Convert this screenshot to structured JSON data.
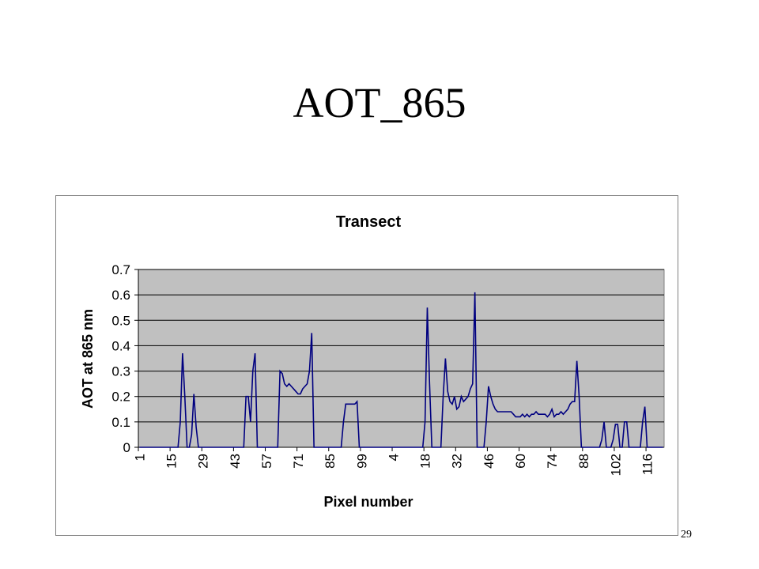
{
  "slide": {
    "title": "AOT_865",
    "page_number": "29"
  },
  "chart_data": {
    "type": "line",
    "title": "Transect",
    "x_label": "Pixel number",
    "y_label": "AOT at 865 nm",
    "ylim": [
      0,
      0.7
    ],
    "yticks": [
      0,
      0.1,
      0.2,
      0.3,
      0.4,
      0.5,
      0.6,
      0.7
    ],
    "grid": true,
    "categories": [
      1,
      null,
      null,
      null,
      null,
      null,
      null,
      null,
      null,
      null,
      null,
      null,
      null,
      null,
      15,
      null,
      null,
      null,
      null,
      null,
      null,
      null,
      null,
      null,
      null,
      null,
      null,
      null,
      29,
      null,
      null,
      null,
      null,
      null,
      null,
      null,
      null,
      null,
      null,
      null,
      null,
      null,
      43,
      null,
      null,
      null,
      null,
      null,
      null,
      null,
      null,
      null,
      null,
      null,
      null,
      null,
      57,
      null,
      null,
      null,
      null,
      null,
      null,
      null,
      null,
      null,
      null,
      null,
      null,
      null,
      71,
      null,
      null,
      null,
      null,
      null,
      null,
      null,
      null,
      null,
      null,
      null,
      null,
      null,
      85,
      null,
      null,
      null,
      null,
      null,
      null,
      null,
      null,
      null,
      null,
      null,
      null,
      null,
      99,
      null,
      null,
      null,
      null,
      null,
      null,
      null,
      null,
      null,
      null,
      null,
      null,
      null,
      4,
      null,
      null,
      null,
      null,
      null,
      null,
      null,
      null,
      null,
      null,
      null,
      null,
      null,
      18,
      null,
      null,
      null,
      null,
      null,
      null,
      null,
      null,
      null,
      null,
      null,
      null,
      null,
      32,
      null,
      null,
      null,
      null,
      null,
      null,
      null,
      null,
      null,
      null,
      null,
      null,
      null,
      46,
      null,
      null,
      null,
      null,
      null,
      null,
      null,
      null,
      null,
      null,
      null,
      null,
      null,
      60,
      null,
      null,
      null,
      null,
      null,
      null,
      null,
      null,
      null,
      null,
      null,
      null,
      null,
      74,
      null,
      null,
      null,
      null,
      null,
      null,
      null,
      null,
      null,
      null,
      null,
      null,
      null,
      88,
      null,
      null,
      null,
      null,
      null,
      null,
      null,
      null,
      null,
      null,
      null,
      null,
      null,
      102,
      null,
      null,
      null,
      null,
      null,
      null,
      null,
      null,
      null,
      null,
      null,
      null,
      null,
      116,
      null,
      null,
      null,
      null,
      null,
      null,
      null
    ],
    "series": [
      {
        "color": "#000080",
        "values": [
          0,
          0,
          0,
          0,
          0,
          0,
          0,
          0,
          0,
          0,
          0,
          0,
          0,
          0,
          0,
          0,
          0,
          0,
          0.1,
          0.37,
          0.2,
          0,
          0,
          0.05,
          0.21,
          0.08,
          0,
          0,
          0,
          0,
          0,
          0,
          0,
          0,
          0,
          0,
          0,
          0,
          0,
          0,
          0,
          0,
          0,
          0,
          0,
          0,
          0,
          0.2,
          0.2,
          0.1,
          0.3,
          0.37,
          0,
          0,
          0,
          0,
          0,
          0,
          0,
          0,
          0,
          0,
          0.3,
          0.29,
          0.25,
          0.24,
          0.25,
          0.24,
          0.23,
          0.22,
          0.21,
          0.21,
          0.23,
          0.24,
          0.25,
          0.3,
          0.45,
          0,
          0,
          0,
          0,
          0,
          0,
          0,
          0,
          0,
          0,
          0,
          0,
          0,
          0.1,
          0.17,
          0.17,
          0.17,
          0.17,
          0.17,
          0.18,
          0,
          0,
          0,
          0,
          0,
          0,
          0,
          0,
          0,
          0,
          0,
          0,
          0,
          0,
          0,
          0,
          0,
          0,
          0,
          0,
          0,
          0,
          0,
          0,
          0,
          0,
          0,
          0,
          0,
          0.1,
          0.55,
          0.25,
          0,
          0,
          0,
          0,
          0,
          0.2,
          0.35,
          0.22,
          0.18,
          0.17,
          0.2,
          0.15,
          0.16,
          0.2,
          0.18,
          0.19,
          0.2,
          0.23,
          0.25,
          0.61,
          0,
          0,
          0,
          0,
          0.1,
          0.24,
          0.2,
          0.17,
          0.15,
          0.14,
          0.14,
          0.14,
          0.14,
          0.14,
          0.14,
          0.14,
          0.13,
          0.12,
          0.12,
          0.12,
          0.13,
          0.12,
          0.13,
          0.12,
          0.13,
          0.13,
          0.14,
          0.13,
          0.13,
          0.13,
          0.13,
          0.12,
          0.13,
          0.15,
          0.12,
          0.13,
          0.13,
          0.14,
          0.13,
          0.14,
          0.15,
          0.17,
          0.18,
          0.18,
          0.34,
          0.2,
          0,
          0,
          0,
          0,
          0,
          0,
          0,
          0,
          0,
          0.03,
          0.1,
          0,
          0,
          0,
          0.03,
          0.09,
          0.09,
          0,
          0,
          0.1,
          0.1,
          0,
          0,
          0,
          0,
          0,
          0,
          0.1,
          0.16,
          0,
          0,
          0,
          0,
          0,
          0,
          0,
          0
        ]
      }
    ]
  }
}
